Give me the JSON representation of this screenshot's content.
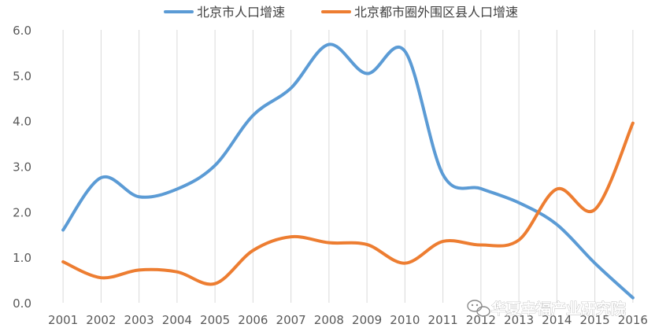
{
  "chart_data": {
    "type": "line",
    "x": [
      "2001",
      "2002",
      "2003",
      "2004",
      "2005",
      "2006",
      "2007",
      "2008",
      "2009",
      "2010",
      "2011",
      "2012",
      "2013",
      "2014",
      "2015",
      "2016"
    ],
    "series": [
      {
        "name": "北京市人口增速",
        "color": "#5b9bd5",
        "values": [
          1.6,
          2.75,
          2.33,
          2.5,
          3.02,
          4.12,
          4.72,
          5.68,
          5.04,
          5.53,
          2.82,
          2.51,
          2.2,
          1.72,
          0.87,
          0.11
        ]
      },
      {
        "name": "北京都市圈外围区县人口增速",
        "color": "#ed7d31",
        "values": [
          0.9,
          0.55,
          0.72,
          0.68,
          0.42,
          1.15,
          1.45,
          1.32,
          1.28,
          0.87,
          1.35,
          1.27,
          1.38,
          2.5,
          2.05,
          3.95
        ]
      }
    ],
    "y_ticks": [
      "0.0",
      "1.0",
      "2.0",
      "3.0",
      "4.0",
      "5.0",
      "6.0"
    ],
    "ylim": [
      0,
      6
    ],
    "grid": "vertical",
    "legend": "top-center"
  },
  "watermark": {
    "text": "华夏幸福产业研究院",
    "icon": "wechat-icon"
  }
}
